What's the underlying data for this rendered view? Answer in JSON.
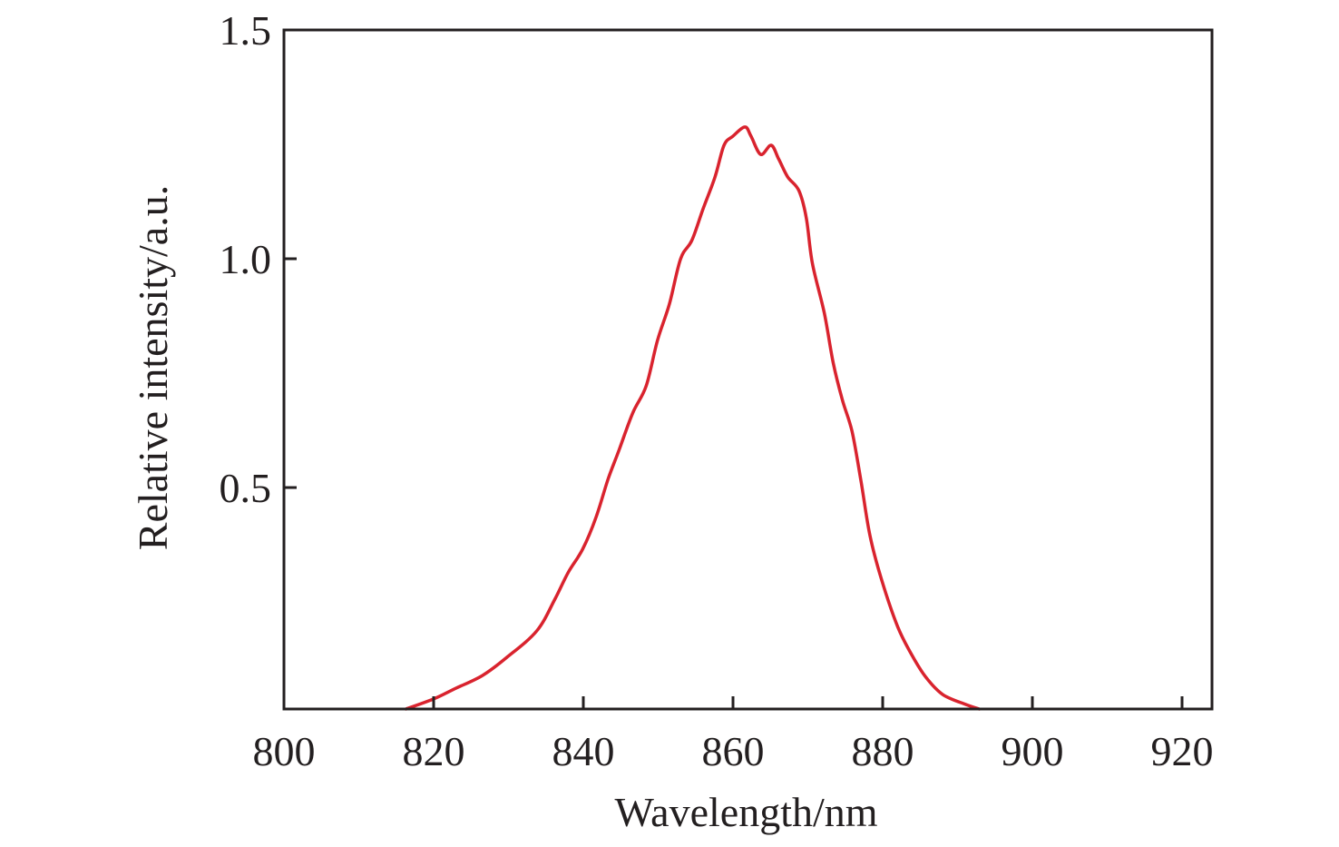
{
  "chart_data": {
    "type": "line",
    "title": "",
    "xlabel": "Wavelength/nm",
    "ylabel": "Relative intensity/a.u.",
    "xlim": [
      800,
      924
    ],
    "ylim": [
      0.016,
      1.5
    ],
    "x_ticks": [
      800,
      820,
      840,
      860,
      880,
      900,
      920
    ],
    "x_tick_labels": [
      "800",
      "820",
      "840",
      "860",
      "880",
      "900",
      "920"
    ],
    "y_ticks": [
      0.5,
      1.0,
      1.5
    ],
    "y_tick_labels": [
      "0.5",
      "1.0",
      "1.5"
    ],
    "grid": false,
    "legend": "none",
    "series": [
      {
        "name": "spectrum",
        "color": "#d9232e",
        "x": [
          816.3,
          820.0,
          822.8,
          826.5,
          829.8,
          833.8,
          836.2,
          838.0,
          839.9,
          841.7,
          843.3,
          844.8,
          846.6,
          848.4,
          849.9,
          851.5,
          853.0,
          854.5,
          856.0,
          857.6,
          858.8,
          860.0,
          861.6,
          862.4,
          863.7,
          865.1,
          866.1,
          867.3,
          868.8,
          869.8,
          870.6,
          872.2,
          873.4,
          874.6,
          875.9,
          877.1,
          878.3,
          879.9,
          882.0,
          883.8,
          885.7,
          888.0,
          891.1,
          892.9
        ],
        "y": [
          0.016,
          0.038,
          0.06,
          0.089,
          0.129,
          0.187,
          0.256,
          0.315,
          0.365,
          0.435,
          0.518,
          0.583,
          0.663,
          0.722,
          0.821,
          0.901,
          1.0,
          1.04,
          1.109,
          1.179,
          1.248,
          1.268,
          1.288,
          1.268,
          1.228,
          1.248,
          1.218,
          1.179,
          1.149,
          1.089,
          0.99,
          0.881,
          0.772,
          0.692,
          0.623,
          0.514,
          0.395,
          0.296,
          0.196,
          0.137,
          0.087,
          0.048,
          0.026,
          0.016
        ]
      }
    ]
  }
}
